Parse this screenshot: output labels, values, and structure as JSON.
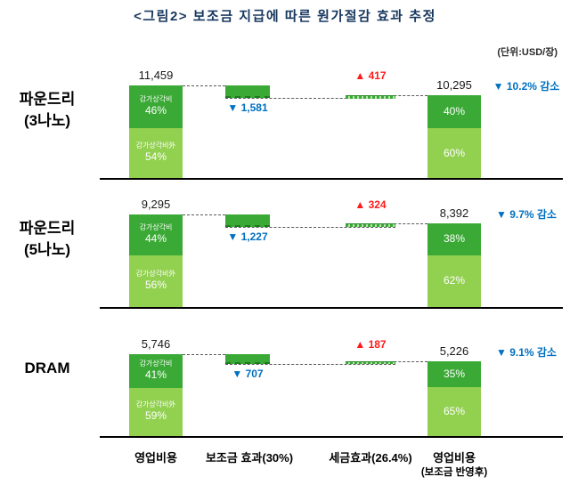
{
  "title": "<그림2> 보조금 지급에 따른 원가절감 효과 추정",
  "unit_label": "(단위:USD/장)",
  "colors": {
    "dark_green": "#3aa935",
    "light_green": "#92d050",
    "blue": "#0070c0",
    "red": "#ff1a1a",
    "axis": "#000000",
    "title": "#17375e"
  },
  "chart_data": {
    "type": "bar",
    "subtype": "waterfall",
    "unit": "USD/장",
    "segment_labels": {
      "dep": "감가상각비",
      "other": "감가상각비外"
    },
    "x_axis": [
      {
        "line1": "영업비용",
        "line2": ""
      },
      {
        "line1": "보조금 효과(30%)",
        "line2": ""
      },
      {
        "line1": "세금효과(26.4%)",
        "line2": ""
      },
      {
        "line1": "영업비용",
        "line2": "(보조금 반영후)"
      }
    ],
    "rows": [
      {
        "label_lines": [
          "파운드리",
          "(3나노)"
        ],
        "start": 11459,
        "start_label": "11,459",
        "dep_pct": "46%",
        "other_pct": "54%",
        "subsidy": 1581,
        "subsidy_label": "▼ 1,581",
        "tax": 417,
        "tax_label": "▲ 417",
        "end": 10295,
        "end_label": "10,295",
        "end_dep_pct": "40%",
        "end_other_pct": "60%",
        "reduction_label": "▼ 10.2% 감소"
      },
      {
        "label_lines": [
          "파운드리",
          "(5나노)"
        ],
        "start": 9295,
        "start_label": "9,295",
        "dep_pct": "44%",
        "other_pct": "56%",
        "subsidy": 1227,
        "subsidy_label": "▼ 1,227",
        "tax": 324,
        "tax_label": "▲ 324",
        "end": 8392,
        "end_label": "8,392",
        "end_dep_pct": "38%",
        "end_other_pct": "62%",
        "reduction_label": "▼ 9.7% 감소"
      },
      {
        "label_lines": [
          "DRAM"
        ],
        "start": 5746,
        "start_label": "5,746",
        "dep_pct": "41%",
        "other_pct": "59%",
        "subsidy": 707,
        "subsidy_label": "▼ 707",
        "tax": 187,
        "tax_label": "▲ 187",
        "end": 5226,
        "end_label": "5,226",
        "end_dep_pct": "35%",
        "end_other_pct": "65%",
        "reduction_label": "▼ 9.1% 감소"
      }
    ]
  }
}
